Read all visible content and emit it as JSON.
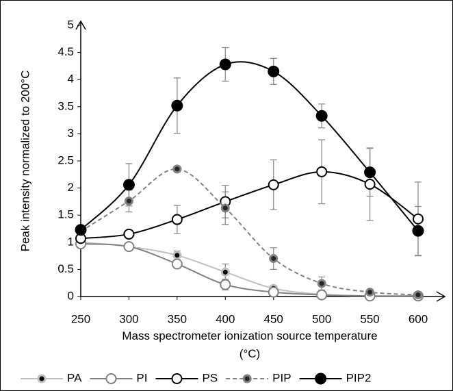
{
  "chart_data": {
    "type": "line",
    "y_label": "Peak intensity normalized to 200°C",
    "x_label": "Mass spectrometer ionization source temperature (°C)",
    "x": [
      250,
      300,
      350,
      400,
      450,
      500,
      550,
      600
    ],
    "xlim": [
      250,
      600
    ],
    "xticks": [
      250,
      300,
      350,
      400,
      450,
      500,
      550,
      600
    ],
    "ylim": [
      0,
      5
    ],
    "yticks": [
      0,
      0.5,
      1,
      1.5,
      2,
      2.5,
      3,
      3.5,
      4,
      4.5,
      5
    ],
    "series": [
      {
        "name": "PA",
        "color": "#bfbfbf",
        "marker_fill": "#000000",
        "dashed": false,
        "values": [
          1.0,
          0.92,
          0.76,
          0.45,
          0.15,
          0.04,
          0.01,
          0.01
        ],
        "errors": [
          0.02,
          0.02,
          0.08,
          0.15,
          0.03,
          0.02,
          0.01,
          0.01
        ]
      },
      {
        "name": "PI",
        "color": "#808080",
        "marker_fill": "#ffffff",
        "dashed": false,
        "values": [
          0.97,
          0.92,
          0.6,
          0.22,
          0.08,
          0.03,
          0.01,
          0.01
        ],
        "errors": [
          0.02,
          0.02,
          0.08,
          0.1,
          0.03,
          0.02,
          0.01,
          0.01
        ]
      },
      {
        "name": "PS",
        "color": "#000000",
        "marker_fill": "#ffffff",
        "dashed": false,
        "values": [
          1.07,
          1.15,
          1.42,
          1.75,
          2.06,
          2.3,
          2.07,
          1.43
        ],
        "errors": [
          0.05,
          0.05,
          0.26,
          0.3,
          0.46,
          0.59,
          0.67,
          0.68
        ]
      },
      {
        "name": "PIP",
        "color": "#808080",
        "marker_fill": "#262626",
        "dashed": true,
        "values": [
          1.2,
          1.76,
          2.35,
          1.63,
          0.7,
          0.24,
          0.08,
          0.03
        ],
        "errors": [
          0.05,
          0.2,
          0.05,
          0.3,
          0.2,
          0.12,
          0.03,
          0.01
        ]
      },
      {
        "name": "PIP2",
        "color": "#000000",
        "marker_fill": "#000000",
        "dashed": false,
        "values": [
          1.23,
          2.06,
          3.52,
          4.28,
          4.15,
          3.33,
          2.29,
          1.21
        ],
        "errors": [
          0.05,
          0.39,
          0.51,
          0.31,
          0.24,
          0.22,
          0.44,
          0.45
        ]
      }
    ]
  }
}
